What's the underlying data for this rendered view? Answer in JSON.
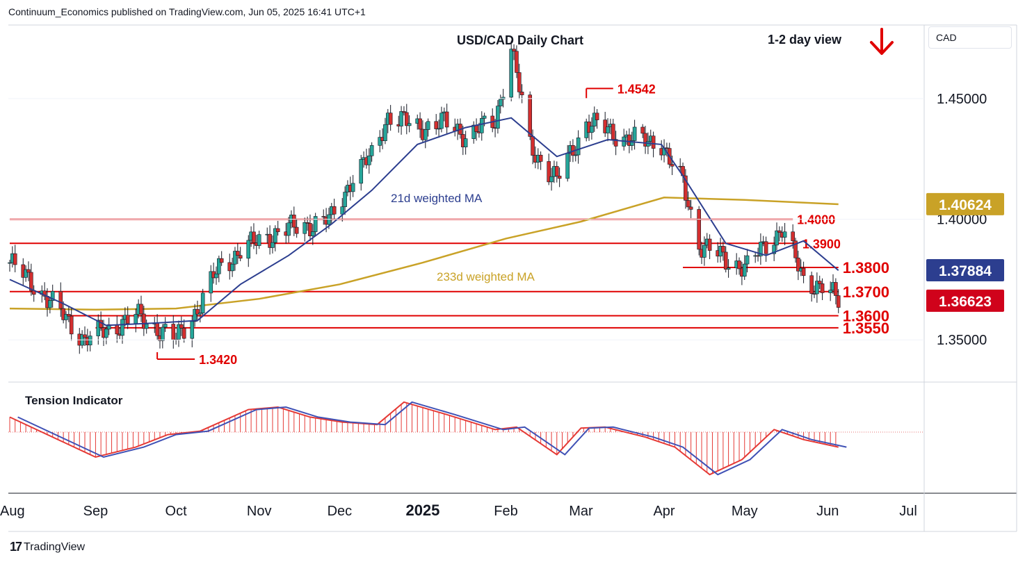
{
  "header": {
    "publisher_line": "Continuum_Economics published on TradingView.com, Jun 05, 2025 16:41 UTC+1",
    "chart_title": "USD/CAD Daily Chart",
    "view_label": "1-2 day view",
    "view_direction_icon": "red-down-arrow-icon"
  },
  "axis": {
    "currency_label": "CAD"
  },
  "footer": {
    "brand": "TradingView",
    "brand_logo": "tv-logo-icon"
  },
  "colors": {
    "bull": "#26a69a",
    "bear": "#d32f2f",
    "ma21": "#2c3e8f",
    "ma233": "#c9a227",
    "level": "#e00000",
    "ma233_badge": "#c9a227",
    "ma21_badge": "#2c3e8f",
    "price_badge": "#d0021b"
  },
  "chart_data": {
    "type": "candlestick",
    "title": "USD/CAD Daily Chart",
    "x_tick_labels": [
      "Aug",
      "Sep",
      "Oct",
      "Nov",
      "Dec",
      "2025",
      "Feb",
      "Mar",
      "Apr",
      "May",
      "Jun",
      "Jul"
    ],
    "y_tick_labels": [
      "1.45000",
      "1.40000",
      "1.35000"
    ],
    "ylim": [
      1.3325,
      1.4805
    ],
    "grid": false,
    "price_badges": [
      {
        "label": "1.40624",
        "series": "233d weighted MA"
      },
      {
        "label": "1.37884",
        "series": "21d weighted MA"
      },
      {
        "label": "1.36623",
        "series": "last price"
      }
    ],
    "levels": [
      {
        "label": "1.4542",
        "value": 1.4542
      },
      {
        "label": "1.4000",
        "value": 1.4
      },
      {
        "label": "1.3900",
        "value": 1.39
      },
      {
        "label": "1.3800",
        "value": 1.38
      },
      {
        "label": "1.3700",
        "value": 1.37
      },
      {
        "label": "1.3600",
        "value": 1.36
      },
      {
        "label": "1.3550",
        "value": 1.355
      },
      {
        "label": "1.3420",
        "value": 1.342
      }
    ],
    "annotations": [
      "21d weighted MA",
      "233d weighted MA"
    ],
    "close_series": {
      "dates": [
        "2024-07-31",
        "2024-08-09",
        "2024-08-20",
        "2024-08-28",
        "2024-09-05",
        "2024-09-16",
        "2024-09-24",
        "2024-10-01",
        "2024-10-09",
        "2024-10-17",
        "2024-10-25",
        "2024-11-04",
        "2024-11-12",
        "2024-11-20",
        "2024-11-28",
        "2024-12-06",
        "2024-12-13",
        "2024-12-19",
        "2024-12-30",
        "2025-01-09",
        "2025-01-17",
        "2025-01-28",
        "2025-02-03",
        "2025-02-10",
        "2025-02-20",
        "2025-03-03",
        "2025-03-11",
        "2025-03-19",
        "2025-03-31",
        "2025-04-03",
        "2025-04-08",
        "2025-04-14",
        "2025-04-24",
        "2025-05-02",
        "2025-05-09",
        "2025-05-15",
        "2025-05-23",
        "2025-05-30",
        "2025-06-05"
      ],
      "values": [
        1.382,
        1.373,
        1.36,
        1.35,
        1.354,
        1.36,
        1.355,
        1.35,
        1.363,
        1.38,
        1.387,
        1.393,
        1.396,
        1.398,
        1.4,
        1.418,
        1.426,
        1.443,
        1.438,
        1.44,
        1.435,
        1.44,
        1.472,
        1.43,
        1.416,
        1.44,
        1.437,
        1.433,
        1.432,
        1.424,
        1.415,
        1.39,
        1.383,
        1.38,
        1.39,
        1.396,
        1.375,
        1.372,
        1.3662
      ]
    },
    "ma21_series": {
      "dates": [
        "2024-07-31",
        "2024-08-20",
        "2024-09-05",
        "2024-09-24",
        "2024-10-09",
        "2024-10-25",
        "2024-11-12",
        "2024-11-28",
        "2024-12-13",
        "2024-12-30",
        "2025-01-17",
        "2025-02-03",
        "2025-02-20",
        "2025-03-11",
        "2025-03-31",
        "2025-04-08",
        "2025-04-24",
        "2025-05-09",
        "2025-05-23",
        "2025-06-05"
      ],
      "values": [
        1.375,
        1.365,
        1.356,
        1.357,
        1.358,
        1.373,
        1.385,
        1.398,
        1.412,
        1.431,
        1.438,
        1.442,
        1.426,
        1.433,
        1.431,
        1.418,
        1.39,
        1.385,
        1.391,
        1.3788
      ]
    },
    "ma233_series": {
      "dates": [
        "2024-07-31",
        "2024-09-01",
        "2024-10-01",
        "2024-11-01",
        "2024-12-01",
        "2025-01-01",
        "2025-02-01",
        "2025-03-01",
        "2025-04-01",
        "2025-05-01",
        "2025-06-05"
      ],
      "values": [
        1.363,
        1.3625,
        1.363,
        1.367,
        1.373,
        1.382,
        1.392,
        1.399,
        1.409,
        1.408,
        1.4062
      ]
    },
    "tension_indicator": {
      "label": "Tension Indicator",
      "dates": [
        "2024-07-31",
        "2024-08-20",
        "2024-09-01",
        "2024-09-16",
        "2024-09-28",
        "2024-10-10",
        "2024-10-28",
        "2024-11-08",
        "2024-11-20",
        "2024-12-02",
        "2024-12-15",
        "2024-12-25",
        "2025-01-10",
        "2025-01-28",
        "2025-02-05",
        "2025-02-20",
        "2025-03-01",
        "2025-03-10",
        "2025-03-25",
        "2025-04-05",
        "2025-04-18",
        "2025-04-30",
        "2025-05-12",
        "2025-05-23",
        "2025-06-05"
      ],
      "values": [
        0.3,
        -0.2,
        -0.5,
        -0.3,
        -0.05,
        0.02,
        0.45,
        0.5,
        0.3,
        0.2,
        0.15,
        0.6,
        0.35,
        0.05,
        0.1,
        -0.45,
        0.08,
        0.1,
        -0.1,
        -0.3,
        -0.85,
        -0.55,
        0.05,
        -0.15,
        -0.3
      ]
    }
  }
}
